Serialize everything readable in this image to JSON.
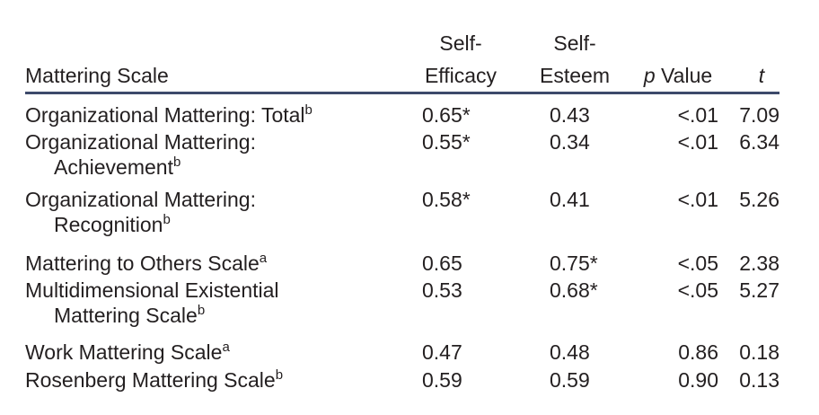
{
  "table": {
    "header": [
      {
        "lines": [
          "Mattering Scale"
        ]
      },
      {
        "lines": [
          "Self-",
          "Efficacy"
        ]
      },
      {
        "lines": [
          "Self-",
          "Esteem"
        ]
      },
      {
        "italic": "p",
        "text": "Value"
      },
      {
        "italic": "t"
      }
    ],
    "rows": [
      {
        "name": [
          "Organizational Mattering: Total"
        ],
        "sup": "b",
        "cells": [
          "0.65*",
          "0.43",
          "<.01",
          "7.09"
        ]
      },
      {
        "name": [
          "Organizational Mattering:",
          "Achievement"
        ],
        "sup": "b",
        "cells": [
          "0.55*",
          "0.34",
          "<.01",
          "6.34"
        ]
      },
      {
        "name": [
          "Organizational Mattering:",
          "Recognition"
        ],
        "sup": "b",
        "cells": [
          "0.58*",
          "0.41",
          "<.01",
          "5.26"
        ]
      },
      {
        "name": [
          "Mattering to Others Scale"
        ],
        "sup": "a",
        "cells": [
          "0.65",
          "0.75*",
          "<.05",
          "2.38"
        ]
      },
      {
        "name": [
          "Multidimensional Existential",
          "Mattering Scale"
        ],
        "sup": "b",
        "cells": [
          "0.53",
          "0.68*",
          "<.05",
          "5.27"
        ]
      },
      {
        "name": [
          "Work Mattering Scale"
        ],
        "sup": "a",
        "cells": [
          "0.47",
          "0.48",
          "0.86",
          "0.18"
        ]
      },
      {
        "name": [
          "Rosenberg Mattering Scale"
        ],
        "sup": "b",
        "cells": [
          "0.59",
          "0.59",
          "0.90",
          "0.13"
        ]
      }
    ]
  }
}
